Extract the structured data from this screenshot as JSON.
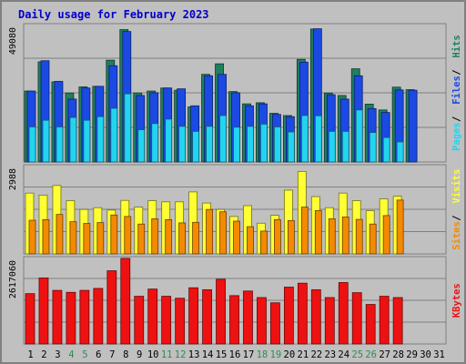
{
  "chart_data": {
    "type": "bar",
    "title": "Daily usage for February 2023",
    "categories": [
      "1",
      "2",
      "3",
      "4",
      "5",
      "6",
      "7",
      "8",
      "9",
      "10",
      "11",
      "12",
      "13",
      "14",
      "15",
      "16",
      "17",
      "18",
      "19",
      "20",
      "21",
      "22",
      "23",
      "24",
      "25",
      "26",
      "27",
      "28",
      "29",
      "30",
      "31"
    ],
    "weekend_days": [
      "4",
      "5",
      "11",
      "12",
      "18",
      "19",
      "25",
      "26"
    ],
    "panels": [
      {
        "id": "top",
        "max_label": "49080",
        "ylim": [
          0,
          49080
        ],
        "right_labels": [
          "Pages",
          "Files",
          "Hits"
        ],
        "series": [
          {
            "name": "Hits",
            "color": "#1f7f5f",
            "values": [
              25500,
              36000,
              28800,
              24800,
              27000,
              27200,
              36600,
              47600,
              24800,
              25500,
              26600,
              25800,
              19800,
              31500,
              35300,
              25300,
              20900,
              21300,
              17500,
              16700,
              36900,
              47800,
              24800,
              23900,
              33500,
              20800,
              18700,
              26900,
              26000,
              null,
              null
            ]
          },
          {
            "name": "Files",
            "color": "#1b49e4",
            "values": [
              25500,
              36400,
              29000,
              22600,
              26600,
              27200,
              34600,
              46900,
              23900,
              24900,
              26600,
              26300,
              20200,
              31000,
              31500,
              24900,
              20200,
              20900,
              17100,
              16300,
              35900,
              47900,
              24200,
              22600,
              31000,
              19200,
              17800,
              25900,
              25800,
              null,
              null
            ]
          },
          {
            "name": "Pages",
            "color": "#22d4f0",
            "values": [
              12600,
              15000,
              12600,
              16000,
              15000,
              16300,
              19300,
              24500,
              11600,
              13800,
              15400,
              12800,
              11000,
              12800,
              16700,
              12500,
              12800,
              13600,
              12600,
              10800,
              16700,
              16600,
              11000,
              11000,
              18700,
              10600,
              8800,
              7200,
              null,
              null,
              null
            ]
          }
        ]
      },
      {
        "id": "middle",
        "max_label": "2988",
        "ylim": [
          0,
          2988
        ],
        "right_labels": [
          "Sites",
          "Visits"
        ],
        "series": [
          {
            "name": "Visits",
            "color": "#ffff33",
            "values": [
              2080,
              2010,
              2340,
              1820,
              1520,
              1580,
              1500,
              1830,
              1600,
              1820,
              1780,
              1780,
              2120,
              1740,
              1520,
              1280,
              1650,
              1050,
              1320,
              2180,
              2820,
              1960,
              1580,
              2080,
              1820,
              1480,
              1880,
              1970,
              null,
              null,
              null
            ]
          },
          {
            "name": "Sites",
            "color": "#f38a00",
            "values": [
              1150,
              1170,
              1350,
              1100,
              1040,
              1070,
              1330,
              1280,
              1020,
              1200,
              1170,
              1060,
              1080,
              1520,
              1440,
              1120,
              930,
              780,
              1170,
              1140,
              1600,
              1480,
              1200,
              1260,
              1180,
              1020,
              1310,
              1840,
              null,
              null,
              null
            ]
          }
        ]
      },
      {
        "id": "bottom",
        "max_label": "2617060",
        "ylim": [
          0,
          2617060
        ],
        "right_labels": [
          "KBytes"
        ],
        "series": [
          {
            "name": "KBytes",
            "color": "#ee1111",
            "values": [
              1540000,
              2020000,
              1640000,
              1580000,
              1640000,
              1700000,
              2240000,
              2620000,
              1460000,
              1680000,
              1460000,
              1400000,
              1720000,
              1660000,
              1980000,
              1480000,
              1620000,
              1420000,
              1260000,
              1740000,
              1860000,
              1660000,
              1420000,
              1880000,
              1570000,
              1210000,
              1460000,
              1420000,
              null,
              null,
              null
            ]
          }
        ]
      }
    ],
    "grid": true
  }
}
